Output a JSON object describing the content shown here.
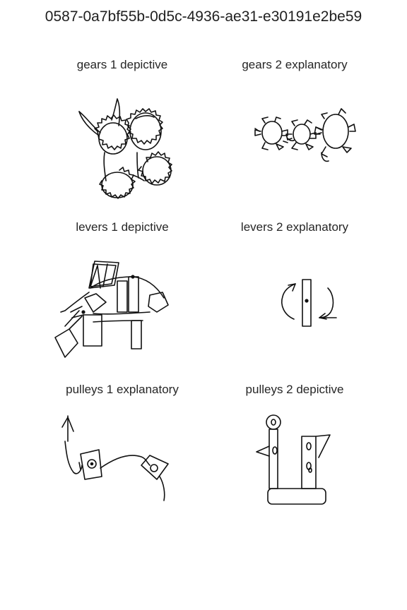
{
  "page": {
    "title": "0587-0a7bf55b-0d5c-4936-ae31-e30191e2be59"
  },
  "panels": [
    {
      "label": "gears 1 depictive"
    },
    {
      "label": "gears 2 explanatory"
    },
    {
      "label": "levers 1 depictive"
    },
    {
      "label": "levers 2 explanatory"
    },
    {
      "label": "pulleys 1 explanatory"
    },
    {
      "label": "pulleys 2 depictive"
    }
  ]
}
